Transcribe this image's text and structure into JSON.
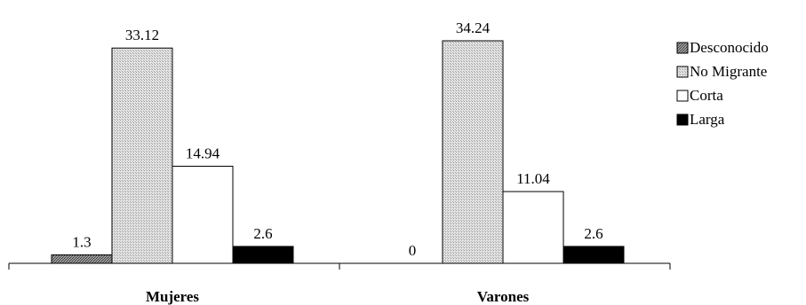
{
  "chart_data": {
    "type": "bar",
    "categories": [
      "Mujeres",
      "Varones"
    ],
    "series": [
      {
        "name": "Desconocido",
        "values": [
          1.3,
          0
        ],
        "color": "#7a7a7a",
        "pattern": "dense-dot"
      },
      {
        "name": "No Migrante",
        "values": [
          33.12,
          34.24
        ],
        "color": "#c8c8c8",
        "pattern": "light-dot"
      },
      {
        "name": "Corta",
        "values": [
          14.94,
          11.04
        ],
        "color": "#ffffff",
        "pattern": "none"
      },
      {
        "name": "Larga",
        "values": [
          2.6,
          2.6
        ],
        "color": "#000000",
        "pattern": "none"
      }
    ],
    "value_labels": [
      [
        "1.3",
        "0"
      ],
      [
        "33.12",
        "34.24"
      ],
      [
        "14.94",
        "11.04"
      ],
      [
        "2.6",
        "2.6"
      ]
    ],
    "ylim": [
      0,
      34.24
    ],
    "grid": false,
    "legend_position": "right"
  }
}
